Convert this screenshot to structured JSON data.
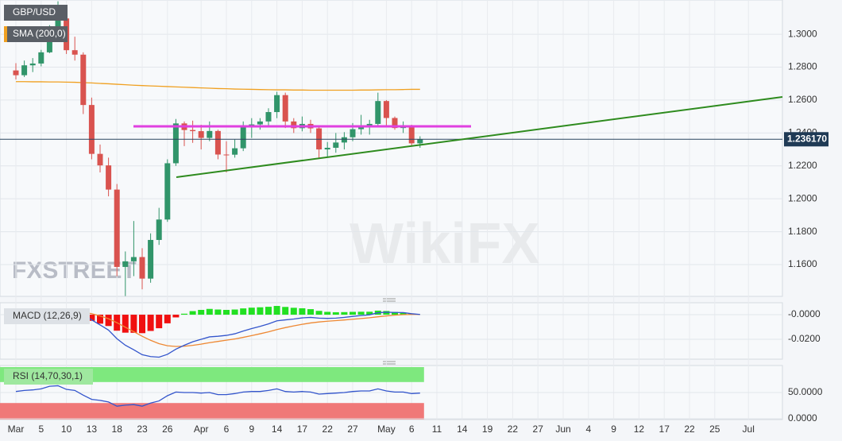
{
  "chart_data": [
    {
      "type": "candlestick",
      "title": "GBP/USD",
      "categories": [
        "Mar",
        null,
        null,
        "5",
        null,
        null,
        "10",
        null,
        null,
        "13",
        null,
        null,
        "18",
        null,
        null,
        "23",
        null,
        null,
        "26",
        null,
        null,
        null,
        "Apr",
        null,
        null,
        "6",
        null,
        null,
        "9",
        null,
        null,
        "14",
        null,
        null,
        "17",
        null,
        null,
        "22",
        null,
        null,
        "27",
        null,
        null,
        null,
        "May",
        null,
        null,
        "6",
        null,
        null,
        "11",
        null,
        null,
        "14",
        null,
        null,
        "19",
        null,
        null,
        "22",
        null,
        null,
        "27",
        null,
        null,
        "Jun",
        null,
        null,
        "4",
        null,
        null,
        "9",
        null,
        null,
        "12",
        null,
        null,
        "17",
        null,
        null,
        "22",
        null,
        null,
        "25",
        null,
        null,
        null,
        "Jul",
        null,
        null,
        null
      ],
      "open": [
        1.278,
        1.2751,
        1.2811,
        1.2822,
        1.289,
        1.3047,
        1.3096,
        1.2903,
        1.2876,
        1.257,
        1.2273,
        1.2203,
        1.2056,
        1.1586,
        1.162,
        1.1646,
        1.1515,
        1.175,
        1.1874,
        1.2216,
        1.2458,
        1.2418,
        1.2411,
        1.237,
        1.2412,
        1.2269,
        1.2268,
        1.2307,
        1.2438,
        1.2452,
        1.247,
        1.2527,
        1.263,
        1.247,
        1.2429,
        1.2455,
        1.2428,
        1.23,
        1.231,
        1.2342,
        1.2374,
        1.2423,
        1.244,
        1.2455,
        1.2594,
        1.2491,
        1.243,
        1.2439,
        1.2337,
        null,
        null,
        null,
        null,
        null,
        null,
        null,
        null,
        null,
        null,
        null,
        null,
        null,
        null,
        null,
        null,
        null,
        null,
        null,
        null,
        null,
        null,
        null,
        null,
        null,
        null,
        null,
        null,
        null,
        null,
        null,
        null,
        null,
        null,
        null,
        null,
        null,
        null,
        null,
        null,
        null,
        null
      ],
      "high": [
        1.2824,
        1.284,
        1.2855,
        1.2905,
        1.3055,
        1.32,
        1.313,
        1.2985,
        1.289,
        1.2615,
        1.233,
        1.225,
        1.209,
        1.168,
        1.1865,
        1.17,
        1.179,
        1.1945,
        1.224,
        1.2485,
        1.247,
        1.2475,
        1.245,
        1.247,
        1.242,
        1.235,
        1.236,
        1.247,
        1.249,
        1.249,
        1.255,
        1.265,
        1.2645,
        1.249,
        1.25,
        1.248,
        1.244,
        1.2345,
        1.24,
        1.2405,
        1.246,
        1.251,
        1.248,
        1.2645,
        1.26,
        1.25,
        1.247,
        1.245,
        1.238,
        null,
        null,
        null,
        null,
        null,
        null,
        null,
        null,
        null,
        null,
        null,
        null,
        null,
        null,
        null,
        null,
        null,
        null,
        null,
        null,
        null,
        null,
        null,
        null,
        null,
        null,
        null,
        null,
        null,
        null,
        null,
        null,
        null,
        null,
        null,
        null,
        null,
        null,
        null,
        null,
        null,
        null
      ],
      "low": [
        1.2725,
        1.274,
        1.277,
        1.2805,
        1.2885,
        1.303,
        1.288,
        1.284,
        1.2515,
        1.224,
        1.216,
        1.2015,
        1.153,
        1.1409,
        1.153,
        1.145,
        1.149,
        1.172,
        1.186,
        1.22,
        1.232,
        1.234,
        1.23,
        1.235,
        1.224,
        1.216,
        1.225,
        1.229,
        1.237,
        1.242,
        1.244,
        1.249,
        1.243,
        1.24,
        1.241,
        1.24,
        1.2245,
        1.225,
        1.228,
        1.23,
        1.235,
        1.239,
        1.239,
        1.244,
        1.244,
        1.242,
        1.24,
        1.232,
        1.231,
        null,
        null,
        null,
        null,
        null,
        null,
        null,
        null,
        null,
        null,
        null,
        null,
        null,
        null,
        null,
        null,
        null,
        null,
        null,
        null,
        null,
        null,
        null,
        null,
        null,
        null,
        null,
        null,
        null,
        null,
        null,
        null,
        null,
        null,
        null,
        null,
        null,
        null,
        null,
        null,
        null,
        null
      ],
      "close": [
        1.2751,
        1.2811,
        1.2822,
        1.289,
        1.3047,
        1.3096,
        1.2903,
        1.2876,
        1.257,
        1.2273,
        1.2203,
        1.2056,
        1.1586,
        1.162,
        1.1646,
        1.1515,
        1.175,
        1.1874,
        1.2216,
        1.2458,
        1.2418,
        1.2411,
        1.237,
        1.2412,
        1.2269,
        1.2268,
        1.2307,
        1.2438,
        1.2452,
        1.247,
        1.2527,
        1.263,
        1.247,
        1.2429,
        1.2455,
        1.2428,
        1.23,
        1.231,
        1.2342,
        1.2374,
        1.2423,
        1.244,
        1.2455,
        1.2594,
        1.2491,
        1.243,
        1.2439,
        1.2337,
        1.2362,
        null,
        null,
        null,
        null,
        null,
        null,
        null,
        null,
        null,
        null,
        null,
        null,
        null,
        null,
        null,
        null,
        null,
        null,
        null,
        null,
        null,
        null,
        null,
        null,
        null,
        null,
        null,
        null,
        null,
        null,
        null,
        null,
        null,
        null,
        null,
        null,
        null,
        null,
        null,
        null,
        null,
        null
      ],
      "up_color": "#31956a",
      "down_color": "#d9534f",
      "series": [
        {
          "name": "SMA (200,0)",
          "color": "#f0a020",
          "values": [
            1.2712,
            1.2712,
            1.2711,
            1.2711,
            1.271,
            1.271,
            1.2709,
            1.2708,
            1.2706,
            1.2704,
            1.2701,
            1.2699,
            1.2696,
            1.2693,
            1.269,
            1.2688,
            1.2686,
            1.2684,
            1.2682,
            1.268,
            1.2678,
            1.2676,
            1.2674,
            1.2672,
            1.267,
            1.2669,
            1.2667,
            1.2666,
            1.2665,
            1.2664,
            1.2663,
            1.2662,
            1.2662,
            1.2661,
            1.2661,
            1.266,
            1.266,
            1.266,
            1.266,
            1.266,
            1.266,
            1.2661,
            1.2661,
            1.2662,
            1.2663,
            1.2663,
            1.2664,
            1.2665,
            1.2665,
            null,
            null,
            null,
            null,
            null,
            null,
            null,
            null,
            null,
            null,
            null,
            null,
            null,
            null,
            null,
            null,
            null,
            null,
            null,
            null,
            null,
            null,
            null,
            null,
            null,
            null,
            null,
            null,
            null,
            null,
            null,
            null,
            null,
            null,
            null,
            null,
            null,
            null,
            null,
            null,
            null,
            null
          ]
        }
      ],
      "last_price": {
        "value": 1.23617,
        "label": "1.236170"
      },
      "ylim": [
        1.1407,
        1.3208
      ],
      "yticks": [
        {
          "value": 1.16,
          "label": "1.1600"
        },
        {
          "value": 1.18,
          "label": "1.1800"
        },
        {
          "value": 1.2,
          "label": "1.2000"
        },
        {
          "value": 1.22,
          "label": "1.2200"
        },
        {
          "value": 1.24,
          "label": "1.2400"
        },
        {
          "value": 1.26,
          "label": "1.2600"
        },
        {
          "value": 1.28,
          "label": "1.2800"
        },
        {
          "value": 1.3,
          "label": "1.3000"
        }
      ],
      "grid": true
    },
    {
      "type": "macd",
      "title": "MACD (12,26,9)",
      "histogram": [
        0.0004,
        0.0005,
        0.0005,
        0.0008,
        0.0016,
        0.0022,
        0.0013,
        0.0006,
        -0.0017,
        -0.005,
        -0.0073,
        -0.0092,
        -0.013,
        -0.0146,
        -0.0147,
        -0.015,
        -0.0132,
        -0.011,
        -0.007,
        -0.0022,
        0.0008,
        0.0029,
        0.0039,
        0.0047,
        0.0042,
        0.0039,
        0.0042,
        0.0051,
        0.0057,
        0.006,
        0.0064,
        0.0071,
        0.0063,
        0.0056,
        0.0052,
        0.0045,
        0.0031,
        0.0023,
        0.002,
        0.0021,
        0.0023,
        0.0024,
        0.0024,
        0.0033,
        0.003,
        0.0022,
        0.0017,
        0.0006,
        0.0
      ],
      "macd": [
        0.001,
        0.0012,
        0.0013,
        0.0018,
        0.003,
        0.0042,
        0.0036,
        0.003,
        0.0003,
        -0.0042,
        -0.0083,
        -0.0125,
        -0.0195,
        -0.0248,
        -0.0285,
        -0.0325,
        -0.034,
        -0.0345,
        -0.0322,
        -0.028,
        -0.0248,
        -0.022,
        -0.02,
        -0.018,
        -0.0175,
        -0.0168,
        -0.0155,
        -0.0133,
        -0.0113,
        -0.0095,
        -0.0075,
        -0.005,
        -0.0042,
        -0.0035,
        -0.0026,
        -0.0022,
        -0.0028,
        -0.003,
        -0.0028,
        -0.0022,
        -0.0014,
        -0.0007,
        -0.0001,
        0.0016,
        0.002,
        0.0018,
        0.0017,
        0.0008,
        0.0002
      ],
      "signal": [
        0.0006,
        0.0007,
        0.0008,
        0.001,
        0.0014,
        0.002,
        0.0023,
        0.0024,
        0.002,
        0.0008,
        -0.001,
        -0.0033,
        -0.0065,
        -0.0102,
        -0.0138,
        -0.0175,
        -0.0208,
        -0.0235,
        -0.0252,
        -0.0258,
        -0.0256,
        -0.0249,
        -0.0239,
        -0.0227,
        -0.0217,
        -0.0207,
        -0.0197,
        -0.0184,
        -0.017,
        -0.0155,
        -0.0139,
        -0.0121,
        -0.0105,
        -0.0091,
        -0.0078,
        -0.0067,
        -0.0059,
        -0.0053,
        -0.0048,
        -0.0043,
        -0.0037,
        -0.0031,
        -0.0025,
        -0.0017,
        -0.001,
        -0.0004,
        0.0,
        0.0002,
        0.0002
      ],
      "positive_color": "#22e022",
      "negative_color": "#f01010",
      "macd_color": "#3355cc",
      "signal_color": "#ee8833",
      "ylim": [
        -0.0361,
        0.0097
      ],
      "yticks": [
        {
          "value": -0.02,
          "label": "-0.0200"
        },
        {
          "value": 0,
          "label": "-0.0000"
        }
      ]
    },
    {
      "type": "rsi",
      "title": "RSI (14,70,30,1)",
      "values": [
        52,
        54,
        55,
        57,
        62,
        63,
        56,
        54,
        45,
        37,
        35,
        32,
        24,
        26,
        27,
        24,
        30,
        34,
        44,
        51,
        50,
        50,
        49,
        50,
        46,
        46,
        48,
        51,
        52,
        52,
        54,
        57,
        52,
        51,
        52,
        51,
        47,
        48,
        49,
        50,
        52,
        53,
        53,
        57,
        53,
        51,
        51,
        48,
        49
      ],
      "color": "#3355cc",
      "levels": [
        70,
        30
      ],
      "upper_color": "#7ee87e",
      "lower_color": "#f07878",
      "ylim": [
        -1.5,
        98.5
      ],
      "yticks": [
        {
          "value": 0,
          "label": "0.0000"
        },
        {
          "value": 50,
          "label": "50.0000"
        }
      ]
    }
  ],
  "watermarks": [
    "FXSTREET",
    "WikiFX"
  ]
}
